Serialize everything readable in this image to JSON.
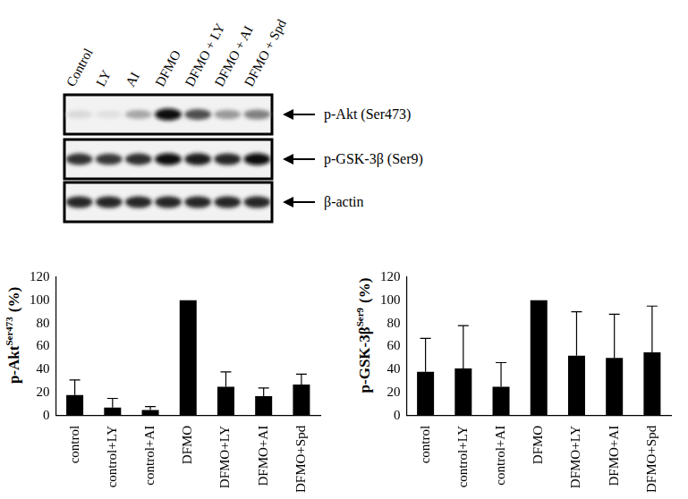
{
  "figure": {
    "lanes": [
      "Control",
      "LY",
      "AI",
      "DFMO",
      "DFMO + LY",
      "DFMO + AI",
      "DFMO + Spd"
    ],
    "bands": [
      {
        "label": "p-Akt (Ser473)",
        "intensity": [
          0.15,
          0.12,
          0.35,
          0.95,
          0.7,
          0.4,
          0.5
        ]
      },
      {
        "label": "p-GSK-3β (Ser9)",
        "intensity": [
          0.8,
          0.78,
          0.82,
          0.95,
          0.88,
          0.85,
          0.95
        ]
      },
      {
        "label": "β-actin",
        "intensity": [
          0.85,
          0.85,
          0.85,
          0.85,
          0.85,
          0.85,
          0.85
        ]
      }
    ]
  },
  "chart_data": [
    {
      "type": "bar",
      "ylabel": {
        "text": "p-Akt",
        "superscript": "Ser473",
        "suffix": "(%)"
      },
      "categories": [
        "control",
        "control+LY",
        "control+AI",
        "DFMO",
        "DFMO+LY",
        "DFMO+AI",
        "DFMO+Spd"
      ],
      "values": [
        18,
        7,
        5,
        100,
        25,
        17,
        27
      ],
      "errors": [
        13,
        8,
        3,
        0,
        13,
        7,
        9
      ],
      "color": "#000000",
      "ylim": [
        0,
        120
      ],
      "yticks": [
        0,
        20,
        40,
        60,
        80,
        100,
        120
      ],
      "grid": false
    },
    {
      "type": "bar",
      "ylabel": {
        "text": "p-GSK-3β",
        "superscript": "Ser9",
        "suffix": "(%)"
      },
      "categories": [
        "control",
        "control+LY",
        "control+AI",
        "DFMO",
        "DFMO+LY",
        "DFMO+AI",
        "DFMO+Spd"
      ],
      "values": [
        38,
        41,
        25,
        100,
        52,
        50,
        55
      ],
      "errors": [
        29,
        37,
        21,
        0,
        38,
        38,
        40
      ],
      "color": "#000000",
      "ylim": [
        0,
        120
      ],
      "yticks": [
        0,
        20,
        40,
        60,
        80,
        100,
        120
      ],
      "grid": false
    }
  ]
}
